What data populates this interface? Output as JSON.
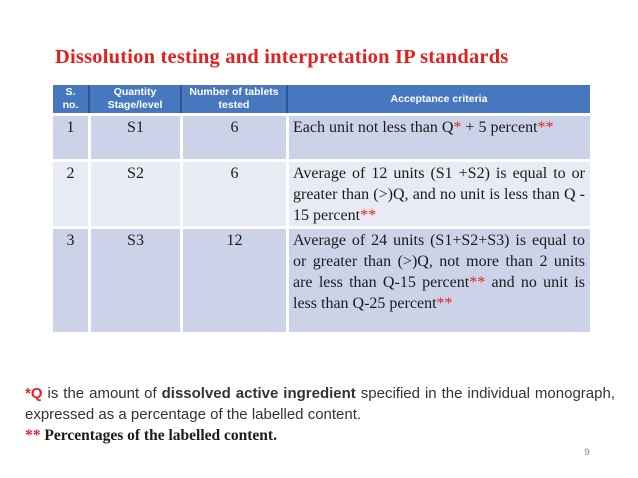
{
  "slide": {
    "title": "Dissolution testing and interpretation IP standards",
    "page_number": "9"
  },
  "colors": {
    "title_red": "#E3201D",
    "accent_red": "#ED1C24",
    "header_blue": "#4778BF",
    "header_divider_blue": "#2E5496",
    "row_band_dark": "#CCD3E9",
    "row_band_light": "#E9EBF4",
    "header_text": "#FFFFFF",
    "body_text": "#1B1B1B",
    "page_number_gray": "#808080"
  },
  "table": {
    "headers": [
      "S.\nno.",
      "Quantity\nStage/level",
      "Number of tablets\ntested",
      "Acceptance criteria"
    ],
    "rows": [
      {
        "s_no": "1",
        "stage": "S1",
        "tablets": "6",
        "criteria": [
          {
            "text": "Each unit not less than Q"
          },
          {
            "text": "*",
            "style": "red"
          },
          {
            "text": " + 5 percent"
          },
          {
            "text": "**",
            "style": "red"
          }
        ]
      },
      {
        "s_no": "2",
        "stage": "S2",
        "tablets": "6",
        "criteria": [
          {
            "text": "Average of 12 units (S1 +S2) is equal to or greater than (>)Q, and no unit is less than Q - 15 percent"
          },
          {
            "text": "**",
            "style": "red"
          }
        ]
      },
      {
        "s_no": "3",
        "stage": "S3",
        "tablets": "12",
        "criteria": [
          {
            "text": "Average of 24 units (S1+S2+S3) is equal to or greater than (>)Q, not more than 2 units are less than Q-15 percent"
          },
          {
            "text": "**",
            "style": "red"
          },
          {
            "text": " and no unit is less than Q-25 percent"
          },
          {
            "text": "**",
            "style": "red"
          }
        ]
      }
    ]
  },
  "footnotes": {
    "q_note": [
      {
        "text": "*Q",
        "style": "red-bold"
      },
      {
        "text": " is the amount of "
      },
      {
        "text": "dissolved active ingredient",
        "style": "bold"
      },
      {
        "text": " specified in the individual monograph, expressed as a percentage of the labelled content."
      }
    ],
    "percent_note": [
      {
        "text": "** ",
        "style": "red-bold"
      },
      {
        "text": "Percentages of the labelled content.",
        "style": "bold"
      }
    ]
  }
}
